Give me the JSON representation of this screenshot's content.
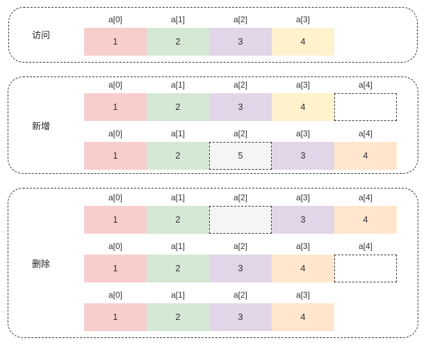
{
  "groups": [
    {
      "label": "访问",
      "rows": [
        {
          "indices": [
            "a[0]",
            "a[1]",
            "a[2]",
            "a[3]"
          ],
          "cells": [
            {
              "value": "1",
              "color": "#f8cecc"
            },
            {
              "value": "2",
              "color": "#d5e8d4"
            },
            {
              "value": "3",
              "color": "#e1d5e7"
            },
            {
              "value": "4",
              "color": "#fff2cc"
            }
          ]
        }
      ]
    },
    {
      "label": "新增",
      "rows": [
        {
          "indices": [
            "a[0]",
            "a[1]",
            "a[2]",
            "a[3]",
            "a[4]"
          ],
          "cells": [
            {
              "value": "1",
              "color": "#f8cecc"
            },
            {
              "value": "2",
              "color": "#d5e8d4"
            },
            {
              "value": "3",
              "color": "#e1d5e7"
            },
            {
              "value": "4",
              "color": "#fff2cc"
            },
            {
              "value": "",
              "color": "#ffffff",
              "style": "empty-dashed"
            }
          ]
        },
        {
          "indices": [
            "a[0]",
            "a[1]",
            "a[2]",
            "a[3]",
            "a[4]"
          ],
          "cells": [
            {
              "value": "1",
              "color": "#f8cecc"
            },
            {
              "value": "2",
              "color": "#d5e8d4"
            },
            {
              "value": "5",
              "color": "#f5f5f5",
              "style": "dashed"
            },
            {
              "value": "3",
              "color": "#e1d5e7"
            },
            {
              "value": "4",
              "color": "#ffe6cc"
            }
          ]
        }
      ]
    },
    {
      "label": "删除",
      "rows": [
        {
          "indices": [
            "a[0]",
            "a[1]",
            "a[2]",
            "a[3]",
            "a[4]"
          ],
          "cells": [
            {
              "value": "1",
              "color": "#f8cecc"
            },
            {
              "value": "2",
              "color": "#d5e8d4"
            },
            {
              "value": "",
              "color": "#f5f5f5",
              "style": "dashed"
            },
            {
              "value": "3",
              "color": "#e1d5e7"
            },
            {
              "value": "4",
              "color": "#ffe6cc"
            }
          ]
        },
        {
          "indices": [
            "a[0]",
            "a[1]",
            "a[2]",
            "a[3]",
            "a[4]"
          ],
          "cells": [
            {
              "value": "1",
              "color": "#f8cecc"
            },
            {
              "value": "2",
              "color": "#d5e8d4"
            },
            {
              "value": "3",
              "color": "#e1d5e7"
            },
            {
              "value": "4",
              "color": "#ffe6cc"
            },
            {
              "value": "",
              "color": "#ffffff",
              "style": "empty-dashed"
            }
          ]
        },
        {
          "indices": [
            "a[0]",
            "a[1]",
            "a[2]",
            "a[3]"
          ],
          "cells": [
            {
              "value": "1",
              "color": "#f8cecc"
            },
            {
              "value": "2",
              "color": "#d5e8d4"
            },
            {
              "value": "3",
              "color": "#e1d5e7"
            },
            {
              "value": "4",
              "color": "#ffe6cc"
            }
          ]
        }
      ]
    }
  ]
}
